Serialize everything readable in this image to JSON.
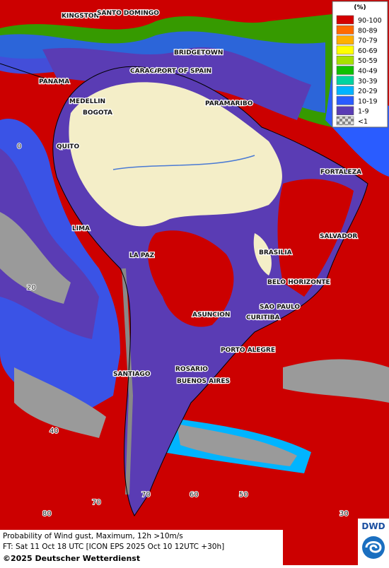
{
  "legend": {
    "title": "(%)",
    "items": [
      {
        "label": "90-100",
        "color": "#d40000"
      },
      {
        "label": "80-89",
        "color": "#ff6a00"
      },
      {
        "label": "70-79",
        "color": "#ffb000"
      },
      {
        "label": "60-69",
        "color": "#ffff00"
      },
      {
        "label": "50-59",
        "color": "#a8e000"
      },
      {
        "label": "40-49",
        "color": "#10c000"
      },
      {
        "label": "30-39",
        "color": "#00d4a0"
      },
      {
        "label": "20-29",
        "color": "#00b4ff"
      },
      {
        "label": "10-19",
        "color": "#2a5cff"
      },
      {
        "label": "1-9",
        "color": "#5a3cb4"
      },
      {
        "label": "<1",
        "color": "#c0c0c0"
      }
    ]
  },
  "cities": [
    "KINGSTON",
    "SANTO DOMINGO",
    "BRIDGETOWN",
    "PANAMA",
    "CARACAS",
    "PORT OF SPAIN",
    "MEDELLIN",
    "BOGOTA",
    "PARAMARIBO",
    "QUITO",
    "FORTALEZA",
    "LIMA",
    "SALVADOR",
    "LA PAZ",
    "BRASILIA",
    "BELO HORIZONTE",
    "SAO PAULO",
    "ASUNCION",
    "CURITIBA",
    "PORTO ALEGRE",
    "ROSARIO",
    "SANTIAGO",
    "BUENOS AIRES"
  ],
  "grid_labels": [
    0,
    20,
    40,
    80,
    70,
    70,
    60,
    50,
    30
  ],
  "caption": {
    "line1": "Probability of Wind gust, Maximum, 12h >10m/s",
    "line2": "FT: Sat 11 Oct 18 UTC [ICON EPS 2025 Oct 10 12UTC +30h]",
    "copyright": "©2025 Deutscher Wetterdienst",
    "logo": "DWD"
  }
}
